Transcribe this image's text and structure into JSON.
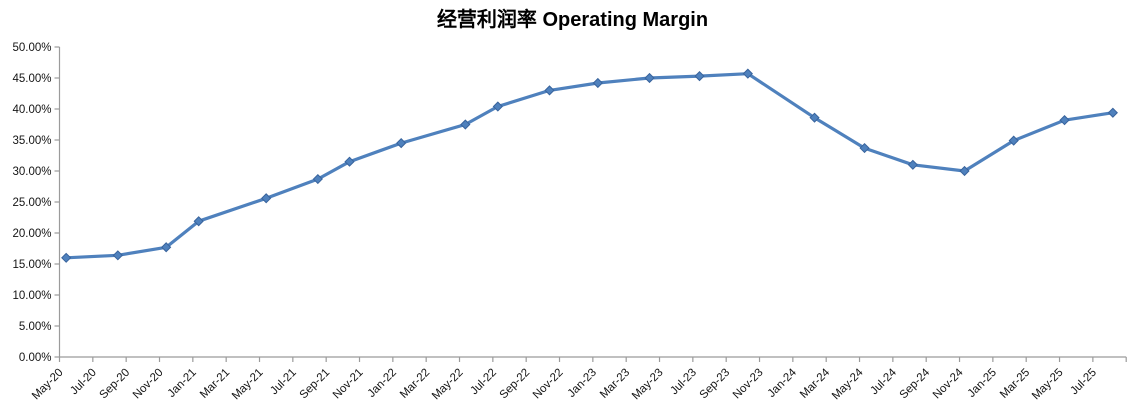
{
  "chart_title": "经营利润率 Operating Margin",
  "colors": {
    "series": "#4f81bd",
    "marker_fill": "#4f81bd",
    "marker_edge": "#38639c",
    "axis": "#9b9b9b",
    "tick_text": "#141414",
    "title_text": "#000000",
    "background": "#ffffff"
  },
  "chart_data": {
    "type": "line",
    "title": "经营利润率 Operating Margin",
    "legend": "none",
    "grid": false,
    "marker": "diamond",
    "x_axis": {
      "unit": "months since May-2020",
      "axis_range_months": [
        0,
        64
      ],
      "label_interval_months": 2,
      "tick_labels": [
        "May-20",
        "Jul-20",
        "Sep-20",
        "Nov-20",
        "Jan-21",
        "Mar-21",
        "May-21",
        "Jul-21",
        "Sep-21",
        "Nov-21",
        "Jan-22",
        "Mar-22",
        "May-22",
        "Jul-22",
        "Sep-22",
        "Nov-22",
        "Jan-23",
        "Mar-23",
        "May-23",
        "Jul-23",
        "Sep-23",
        "Nov-23",
        "Jan-24",
        "Mar-24",
        "May-24",
        "Jul-24",
        "Sep-24",
        "Nov-24",
        "Jan-25",
        "Mar-25",
        "May-25",
        "Jul-25"
      ]
    },
    "y_axis": {
      "min": 0,
      "max": 50,
      "step": 5,
      "unit": "percent",
      "tick_labels": [
        "0.00%",
        "5.00%",
        "10.00%",
        "15.00%",
        "20.00%",
        "25.00%",
        "30.00%",
        "35.00%",
        "40.00%",
        "45.00%",
        "50.00%"
      ]
    },
    "series": [
      {
        "name": "Operating Margin",
        "points": [
          {
            "month": 0.4,
            "value": 16.0
          },
          {
            "month": 3.5,
            "value": 16.4
          },
          {
            "month": 6.4,
            "value": 17.7
          },
          {
            "month": 8.35,
            "value": 21.9
          },
          {
            "month": 12.4,
            "value": 25.6
          },
          {
            "month": 15.5,
            "value": 28.7
          },
          {
            "month": 17.4,
            "value": 31.5
          },
          {
            "month": 20.5,
            "value": 34.5
          },
          {
            "month": 24.35,
            "value": 37.5
          },
          {
            "month": 26.3,
            "value": 40.4
          },
          {
            "month": 29.4,
            "value": 43.0
          },
          {
            "month": 32.3,
            "value": 44.2
          },
          {
            "month": 35.4,
            "value": 45.0
          },
          {
            "month": 38.4,
            "value": 45.3
          },
          {
            "month": 41.3,
            "value": 45.7
          },
          {
            "month": 45.3,
            "value": 38.6
          },
          {
            "month": 48.3,
            "value": 33.7
          },
          {
            "month": 51.2,
            "value": 31.0
          },
          {
            "month": 54.3,
            "value": 30.0
          },
          {
            "month": 57.25,
            "value": 34.9
          },
          {
            "month": 60.3,
            "value": 38.2
          },
          {
            "month": 63.2,
            "value": 39.4
          }
        ]
      }
    ]
  }
}
